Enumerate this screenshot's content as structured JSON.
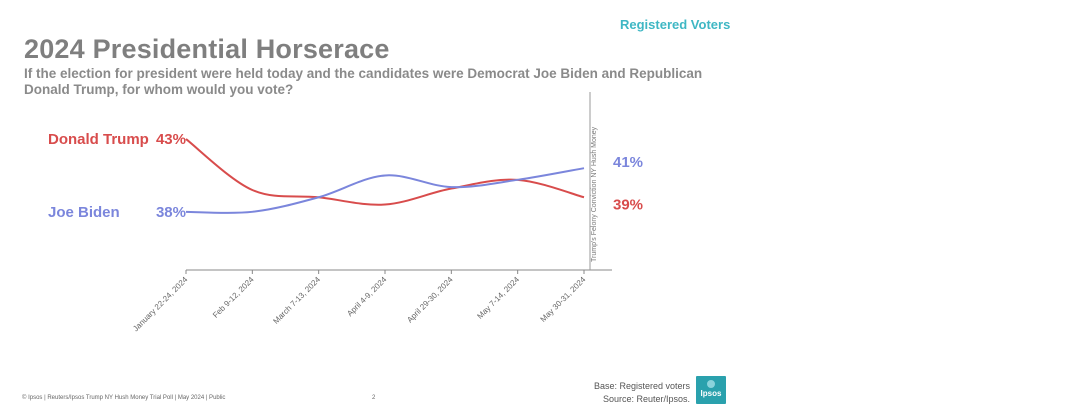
{
  "header": {
    "badge": "Registered Voters",
    "title": "2024 Presidential Horserace",
    "question": "If the election for president were held today and the candidates were Democrat Joe Biden and Republican Donald Trump, for whom would you vote?"
  },
  "chart_data": {
    "type": "line",
    "categories": [
      "January 22-24, 2024",
      "Feb 9-12, 2024",
      "March 7-13, 2024",
      "April 4-9, 2024",
      "April 29-30, 2024",
      "May 7-14, 2024",
      "May 30-31, 2024"
    ],
    "series": [
      {
        "name": "Donald Trump",
        "values": [
          43,
          39.5,
          39,
          38.5,
          39.6,
          40.2,
          39
        ],
        "start_label": "43%",
        "end_label": "39%",
        "color": "#d84c4c"
      },
      {
        "name": "Joe Biden",
        "values": [
          38,
          38,
          39,
          40.5,
          39.7,
          40.2,
          41
        ],
        "start_label": "38%",
        "end_label": "41%",
        "color": "#7b86dc"
      }
    ],
    "ylim": [
      34,
      45
    ],
    "grid": false,
    "annotation": "Trump's Felony Conviction NY Hush Money"
  },
  "footer": {
    "left": "© Ipsos | Reuters/Ipsos Trump NY Hush Money Trial Poll | May 2024 | Public",
    "page": "2",
    "base": "Base: Registered voters",
    "source": "Source: Reuter/Ipsos.",
    "logo": "Ipsos"
  }
}
